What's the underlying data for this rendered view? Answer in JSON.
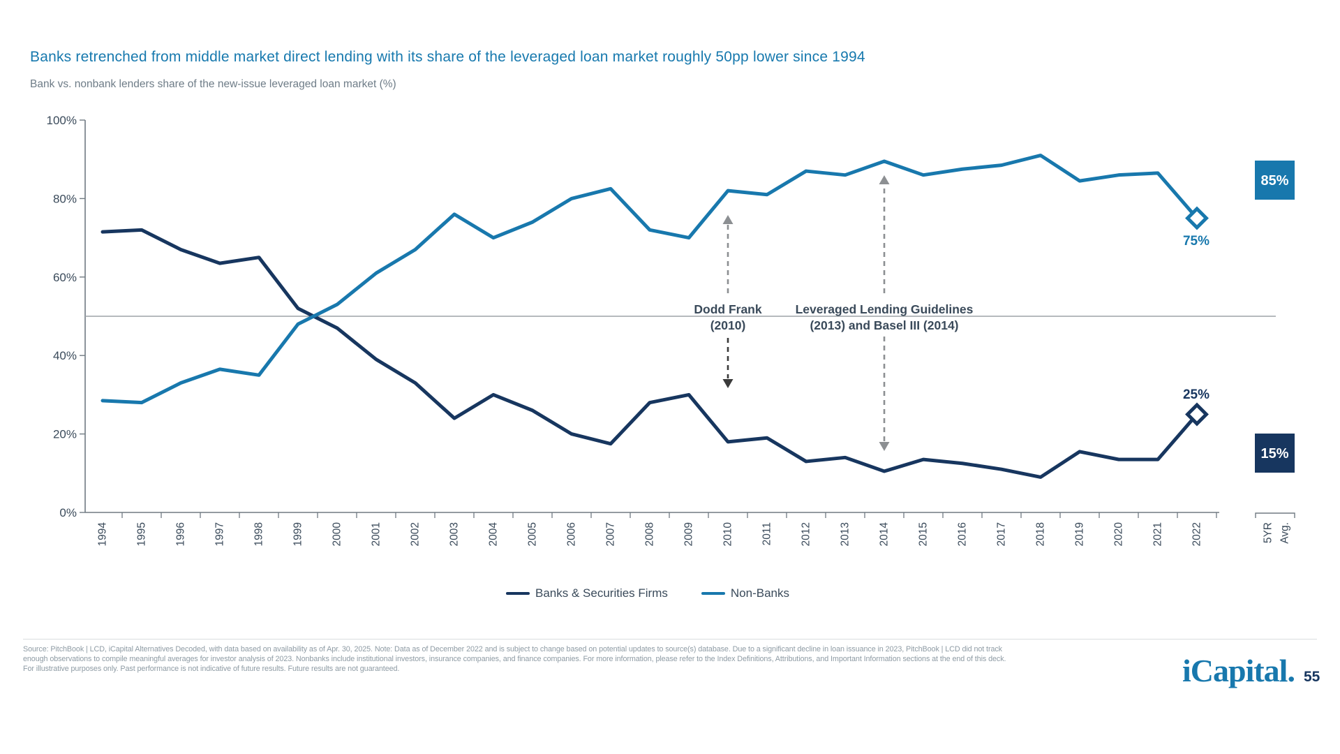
{
  "title": "Banks retrenched from middle market direct lending with its share of the leveraged loan market roughly 50pp lower since 1994",
  "subtitle": "Bank vs. nonbank lenders share of the new-issue leveraged loan market (%)",
  "chart_data": {
    "type": "line",
    "categories": [
      "1994",
      "1995",
      "1996",
      "1997",
      "1998",
      "1999",
      "2000",
      "2001",
      "2002",
      "2003",
      "2004",
      "2005",
      "2006",
      "2007",
      "2008",
      "2009",
      "2010",
      "2011",
      "2012",
      "2013",
      "2014",
      "2015",
      "2016",
      "2017",
      "2018",
      "2019",
      "2020",
      "2021",
      "2022"
    ],
    "series": [
      {
        "name": "Banks & Securities Firms",
        "color": "#17365F",
        "values": [
          71.5,
          72,
          67,
          63.5,
          65,
          52,
          47,
          39,
          33,
          24,
          30,
          26,
          20,
          17.5,
          28,
          30,
          18,
          19,
          13,
          14,
          10.5,
          13.5,
          12.5,
          11,
          9,
          15.5,
          13.5,
          13.5,
          25
        ],
        "end_label": "25%",
        "avg_label": "15%"
      },
      {
        "name": "Non-Banks",
        "color": "#1878AD",
        "values": [
          28.5,
          28,
          33,
          36.5,
          35,
          48,
          53,
          61,
          67,
          76,
          70,
          74,
          80,
          82.5,
          72,
          70,
          82,
          81,
          87,
          86,
          89.5,
          86,
          87.5,
          88.5,
          91,
          84.5,
          86,
          86.5,
          75
        ],
        "end_label": "75%",
        "avg_label": "85%"
      }
    ],
    "ylim": [
      0,
      100
    ],
    "y_ticks": [
      {
        "value": 100,
        "label": "100%"
      },
      {
        "value": 80,
        "label": "80%"
      },
      {
        "value": 60,
        "label": "60%"
      },
      {
        "value": 40,
        "label": "40%"
      },
      {
        "value": 20,
        "label": "20%"
      },
      {
        "value": 0,
        "label": "0%"
      }
    ],
    "gridline_at": 50,
    "avg_column_label_lines": [
      "5YR",
      "Avg."
    ],
    "annotations": [
      {
        "lines": [
          "Dodd Frank",
          "(2010)"
        ],
        "year": "2010"
      },
      {
        "lines": [
          "Leveraged Lending Guidelines",
          "(2013) and Basel III (2014)"
        ],
        "year": "2014"
      }
    ],
    "legend_position": "bottom",
    "grid": "off"
  },
  "footer": {
    "source_lines": [
      "Source: PitchBook | LCD, iCapital Alternatives Decoded, with data based on availability as of Apr. 30, 2025. Note: Data as of December 2022 and is subject to change based on potential updates to source(s) database. Due to a significant decline in loan issuance in 2023, PitchBook | LCD did not track",
      "enough observations to compile meaningful averages for investor analysis of 2023. Nonbanks include institutional investors, insurance companies, and finance companies. For more information, please refer to the Index Definitions, Attributions, and Important Information sections at the end of this deck.",
      "For illustrative purposes only. Past performance is not indicative of future results. Future results are not guaranteed."
    ],
    "logo_text": "iCapital.",
    "page_number": "55"
  }
}
